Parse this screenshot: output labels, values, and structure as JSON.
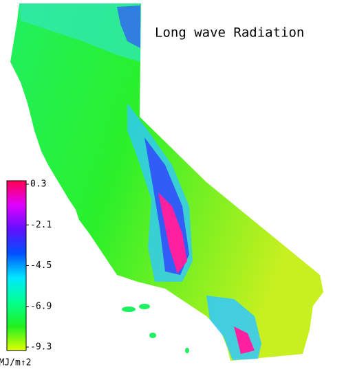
{
  "map": {
    "title": "Long wave Radiation",
    "colorbar": {
      "clim": [
        -9.3,
        0.3
      ],
      "ticks": [
        0.3,
        -2.1,
        -4.5,
        -6.9,
        -9.3
      ],
      "colors": [
        "#ff0050",
        "#e000ff",
        "#6010ff",
        "#0050ff",
        "#00e8ff",
        "#00ff90",
        "#20f020",
        "#e0ff00"
      ],
      "unit": "MJ/m↑2"
    }
  }
}
